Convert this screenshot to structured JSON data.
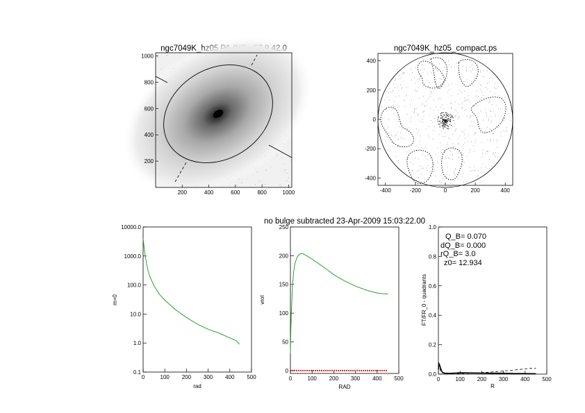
{
  "chart_data": [
    {
      "type": "image",
      "title": "ngc7049K_hz05 PA,INC= 57.9 42.0",
      "x_ticks": [
        "200",
        "400",
        "600",
        "800",
        "1000"
      ],
      "y_ticks": [
        "200",
        "400",
        "600",
        "800",
        "1000"
      ],
      "xlim": [
        0,
        1024
      ],
      "ylim": [
        0,
        1024
      ],
      "center": [
        465,
        565
      ],
      "ellipse_semi_axes": [
        430,
        340
      ],
      "ellipse_angle_deg": -32
    },
    {
      "type": "contour",
      "title": "ngc7049K_hz05_compact.ps",
      "x_ticks": [
        "-400",
        "-200",
        "0",
        "200",
        "400"
      ],
      "y_ticks": [
        "-400",
        "-200",
        "0",
        "200",
        "400"
      ],
      "xlim": [
        -450,
        450
      ],
      "ylim": [
        -450,
        450
      ],
      "circle_radius": 445
    },
    {
      "type": "line",
      "xlabel": "rad",
      "ylabel": "m=0",
      "x_ticks": [
        "0",
        "100",
        "200",
        "300",
        "400",
        "500"
      ],
      "y_ticks": [
        "0.1",
        "1.0",
        "10.0",
        "100.0",
        "1000.0",
        "10000.0"
      ],
      "xlim": [
        0,
        500
      ],
      "ylim": [
        0.1,
        10000
      ],
      "yscale": "log",
      "series": [
        {
          "color": "#2ca02c",
          "x": [
            0,
            5,
            10,
            20,
            30,
            50,
            75,
            100,
            150,
            200,
            250,
            300,
            350,
            400,
            430,
            445
          ],
          "values": [
            4000,
            1800,
            1000,
            380,
            200,
            95,
            48,
            30,
            14,
            7.6,
            4.5,
            3.0,
            2.2,
            1.5,
            1.2,
            0.9
          ]
        }
      ]
    },
    {
      "type": "line",
      "title": "no bulge subtracted   23-Apr-2009 15:03:22.00",
      "xlabel": "RAD",
      "ylabel": "vrot",
      "x_ticks": [
        "0",
        "100",
        "200",
        "300",
        "400",
        "500"
      ],
      "y_ticks": [
        "0",
        "50",
        "100",
        "150",
        "200",
        "250"
      ],
      "xlim": [
        0,
        500
      ],
      "ylim": [
        -5,
        250
      ],
      "series": [
        {
          "color": "#2ca02c",
          "x": [
            0,
            2,
            5,
            10,
            15,
            20,
            30,
            40,
            50,
            60,
            75,
            100,
            150,
            200,
            250,
            300,
            350,
            400,
            450
          ],
          "values": [
            30,
            70,
            110,
            150,
            172,
            185,
            197,
            202,
            204,
            203,
            200,
            194,
            181,
            167,
            156,
            147,
            140,
            135,
            133
          ]
        },
        {
          "color": "#d62728",
          "style": "points",
          "x": [
            0,
            450
          ],
          "values": [
            0,
            0
          ]
        }
      ]
    },
    {
      "type": "line",
      "xlabel": "R",
      "ylabel": "FT/FR_0 - quadrants",
      "x_ticks": [
        "0",
        "100",
        "200",
        "300",
        "400",
        "500"
      ],
      "y_ticks": [
        "0.0",
        "0.2",
        "0.4",
        "0.6",
        "0.8",
        "1.0"
      ],
      "xlim": [
        0,
        500
      ],
      "ylim": [
        0,
        1
      ],
      "annotations": [
        "Q_B=  0.070",
        "dQ_B=  0.000",
        "rQ_B=    3.0",
        "z0= 12.934"
      ],
      "series": [
        {
          "color": "#000000",
          "style": "solid",
          "x": [
            0,
            3,
            6,
            10,
            15,
            20,
            30,
            50,
            75,
            100,
            150,
            200,
            250,
            300,
            350,
            400,
            450
          ],
          "values": [
            0.035,
            0.07,
            0.06,
            0.04,
            0.02,
            0.01,
            0.006,
            0.005,
            0.007,
            0.009,
            0.008,
            0.007,
            0.006,
            0.006,
            0.004,
            0.004,
            0.003
          ]
        },
        {
          "color": "#000000",
          "style": "dashed",
          "x": [
            0,
            3,
            6,
            10,
            20,
            50,
            100,
            150,
            200,
            250,
            300,
            350,
            400,
            430,
            450
          ],
          "values": [
            0.03,
            0.05,
            0.04,
            0.02,
            0.01,
            0.005,
            0.004,
            0.006,
            0.01,
            0.015,
            0.021,
            0.028,
            0.036,
            0.04,
            0.04
          ]
        }
      ]
    }
  ]
}
